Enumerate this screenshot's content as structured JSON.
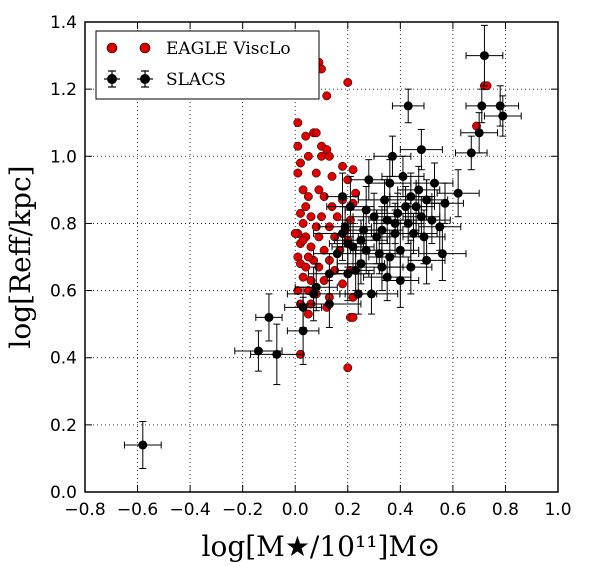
{
  "chart_data": {
    "type": "scatter",
    "xlabel": "log[M★/10¹¹]M⊙",
    "ylabel": "log[Reff/kpc]",
    "xlim": [
      -0.8,
      1.0
    ],
    "ylim": [
      0.0,
      1.4
    ],
    "x_ticks": [
      "−0.8",
      "−0.6",
      "−0.4",
      "−0.2",
      "0.0",
      "0.2",
      "0.4",
      "0.6",
      "0.8",
      "1.0"
    ],
    "y_ticks": [
      "0.0",
      "0.2",
      "0.4",
      "0.6",
      "0.8",
      "1.0",
      "1.2",
      "1.4"
    ],
    "grid": true,
    "legend_position": "top-left",
    "series": [
      {
        "name": "EAGLE ViscLo",
        "color": "#dd0000",
        "marker": "circle",
        "points": [
          [
            0.09,
            1.28
          ],
          [
            0.1,
            1.26
          ],
          [
            0.2,
            1.22
          ],
          [
            0.12,
            1.18
          ],
          [
            0.01,
            1.1
          ],
          [
            0.07,
            1.07
          ],
          [
            0.08,
            1.07
          ],
          [
            0.04,
            1.06
          ],
          [
            0.01,
            1.03
          ],
          [
            0.1,
            1.03
          ],
          [
            0.12,
            1.02
          ],
          [
            0.05,
            1.0
          ],
          [
            0.1,
            1.0
          ],
          [
            0.13,
            1.0
          ],
          [
            0.02,
            0.98
          ],
          [
            0.18,
            0.97
          ],
          [
            0.22,
            0.96
          ],
          [
            0.01,
            0.95
          ],
          [
            0.08,
            0.95
          ],
          [
            0.14,
            0.94
          ],
          [
            0.2,
            0.93
          ],
          [
            0.03,
            0.9
          ],
          [
            0.09,
            0.9
          ],
          [
            0.23,
            0.89
          ],
          [
            0.05,
            0.88
          ],
          [
            0.11,
            0.88
          ],
          [
            0.18,
            0.87
          ],
          [
            0.22,
            0.86
          ],
          [
            0.04,
            0.85
          ],
          [
            0.14,
            0.85
          ],
          [
            0.02,
            0.83
          ],
          [
            0.06,
            0.82
          ],
          [
            0.1,
            0.82
          ],
          [
            0.16,
            0.82
          ],
          [
            0.21,
            0.81
          ],
          [
            0.03,
            0.8
          ],
          [
            0.08,
            0.79
          ],
          [
            0.13,
            0.79
          ],
          [
            0.19,
            0.78
          ],
          [
            0.01,
            0.77
          ],
          [
            0.04,
            0.76
          ],
          [
            0.09,
            0.76
          ],
          [
            0.15,
            0.76
          ],
          [
            0.2,
            0.75
          ],
          [
            0.02,
            0.74
          ],
          [
            0.06,
            0.73
          ],
          [
            0.11,
            0.72
          ],
          [
            0.17,
            0.72
          ],
          [
            0.01,
            0.7
          ],
          [
            0.07,
            0.69
          ],
          [
            0.13,
            0.69
          ],
          [
            0.02,
            0.68
          ],
          [
            0.04,
            0.67
          ],
          [
            0.09,
            0.67
          ],
          [
            0.15,
            0.66
          ],
          [
            0.21,
            0.66
          ],
          [
            0.03,
            0.64
          ],
          [
            0.06,
            0.63
          ],
          [
            0.11,
            0.63
          ],
          [
            0.18,
            0.62
          ],
          [
            0.01,
            0.6
          ],
          [
            0.05,
            0.6
          ],
          [
            0.08,
            0.59
          ],
          [
            0.13,
            0.58
          ],
          [
            0.22,
            0.58
          ],
          [
            0.02,
            0.56
          ],
          [
            0.06,
            0.56
          ],
          [
            0.12,
            0.55
          ],
          [
            0.05,
            0.53
          ],
          [
            0.21,
            0.52
          ],
          [
            0.02,
            0.41
          ],
          [
            0.2,
            0.37
          ],
          [
            0.22,
            0.52
          ],
          [
            0.69,
            1.09
          ],
          [
            0.72,
            1.21
          ],
          [
            0.73,
            1.21
          ],
          [
            0.03,
            0.75
          ],
          [
            0.0,
            0.77
          ],
          [
            0.05,
            0.7
          ]
        ]
      },
      {
        "name": "SLACS",
        "color": "#000000",
        "marker": "circle",
        "errorbars": true,
        "points": [
          [
            -0.58,
            0.14,
            0.07,
            0.07
          ],
          [
            -0.14,
            0.42,
            0.09,
            0.06
          ],
          [
            -0.1,
            0.52,
            0.05,
            0.07
          ],
          [
            -0.07,
            0.41,
            0.1,
            0.09
          ],
          [
            0.03,
            0.55,
            0.07,
            0.06
          ],
          [
            0.03,
            0.48,
            0.06,
            0.1
          ],
          [
            0.07,
            0.59,
            0.1,
            0.08
          ],
          [
            0.08,
            0.61,
            0.08,
            0.07
          ],
          [
            0.13,
            0.56,
            0.12,
            0.07
          ],
          [
            0.13,
            0.65,
            0.08,
            0.06
          ],
          [
            0.16,
            0.71,
            0.09,
            0.06
          ],
          [
            0.18,
            0.77,
            0.11,
            0.08
          ],
          [
            0.18,
            0.88,
            0.06,
            0.07
          ],
          [
            0.19,
            0.79,
            0.1,
            0.06
          ],
          [
            0.2,
            0.74,
            0.07,
            0.07
          ],
          [
            0.2,
            0.65,
            0.08,
            0.08
          ],
          [
            0.21,
            0.85,
            0.09,
            0.09
          ],
          [
            0.22,
            0.73,
            0.08,
            0.07
          ],
          [
            0.23,
            0.66,
            0.07,
            0.06
          ],
          [
            0.25,
            0.68,
            0.09,
            0.06
          ],
          [
            0.25,
            0.75,
            0.1,
            0.06
          ],
          [
            0.27,
            0.84,
            0.08,
            0.07
          ],
          [
            0.28,
            0.93,
            0.07,
            0.06
          ],
          [
            0.3,
            0.82,
            0.08,
            0.07
          ],
          [
            0.31,
            0.76,
            0.07,
            0.08
          ],
          [
            0.32,
            0.71,
            0.09,
            0.06
          ],
          [
            0.33,
            0.78,
            0.08,
            0.07
          ],
          [
            0.34,
            0.87,
            0.1,
            0.06
          ],
          [
            0.35,
            0.81,
            0.07,
            0.07
          ],
          [
            0.36,
            0.7,
            0.08,
            0.07
          ],
          [
            0.36,
            0.92,
            0.08,
            0.07
          ],
          [
            0.37,
            1.0,
            0.07,
            0.06
          ],
          [
            0.38,
            0.8,
            0.08,
            0.06
          ],
          [
            0.38,
            0.77,
            0.09,
            0.07
          ],
          [
            0.39,
            0.83,
            0.08,
            0.06
          ],
          [
            0.4,
            0.72,
            0.07,
            0.09
          ],
          [
            0.41,
            0.94,
            0.08,
            0.06
          ],
          [
            0.42,
            0.85,
            0.08,
            0.06
          ],
          [
            0.43,
            0.8,
            0.06,
            0.06
          ],
          [
            0.43,
            1.15,
            0.06,
            0.05
          ],
          [
            0.44,
            0.88,
            0.08,
            0.07
          ],
          [
            0.45,
            0.77,
            0.09,
            0.06
          ],
          [
            0.46,
            0.85,
            0.07,
            0.07
          ],
          [
            0.47,
            0.9,
            0.08,
            0.07
          ],
          [
            0.48,
            1.02,
            0.08,
            0.06
          ],
          [
            0.48,
            0.82,
            0.07,
            0.06
          ],
          [
            0.49,
            0.76,
            0.08,
            0.08
          ],
          [
            0.5,
            0.87,
            0.08,
            0.06
          ],
          [
            0.52,
            0.81,
            0.07,
            0.07
          ],
          [
            0.53,
            0.92,
            0.07,
            0.06
          ],
          [
            0.55,
            0.79,
            0.08,
            0.07
          ],
          [
            0.56,
            0.71,
            0.09,
            0.08
          ],
          [
            0.57,
            0.86,
            0.07,
            0.06
          ],
          [
            0.62,
            0.89,
            0.08,
            0.07
          ],
          [
            0.67,
            1.01,
            0.06,
            0.05
          ],
          [
            0.7,
            1.07,
            0.07,
            0.06
          ],
          [
            0.71,
            1.15,
            0.06,
            0.05
          ],
          [
            0.72,
            1.3,
            0.07,
            0.09
          ],
          [
            0.78,
            1.15,
            0.07,
            0.06
          ],
          [
            0.79,
            1.12,
            0.07,
            0.06
          ],
          [
            0.33,
            0.67,
            0.08,
            0.07
          ],
          [
            0.29,
            0.59,
            0.1,
            0.06
          ],
          [
            0.24,
            0.59,
            0.07,
            0.06
          ],
          [
            0.26,
            0.78,
            0.08,
            0.06
          ],
          [
            0.35,
            0.64,
            0.09,
            0.07
          ],
          [
            0.4,
            0.63,
            0.07,
            0.08
          ],
          [
            0.27,
            0.72,
            0.06,
            0.07
          ],
          [
            0.44,
            0.67,
            0.08,
            0.08
          ],
          [
            0.5,
            0.69,
            0.07,
            0.07
          ]
        ]
      }
    ]
  }
}
